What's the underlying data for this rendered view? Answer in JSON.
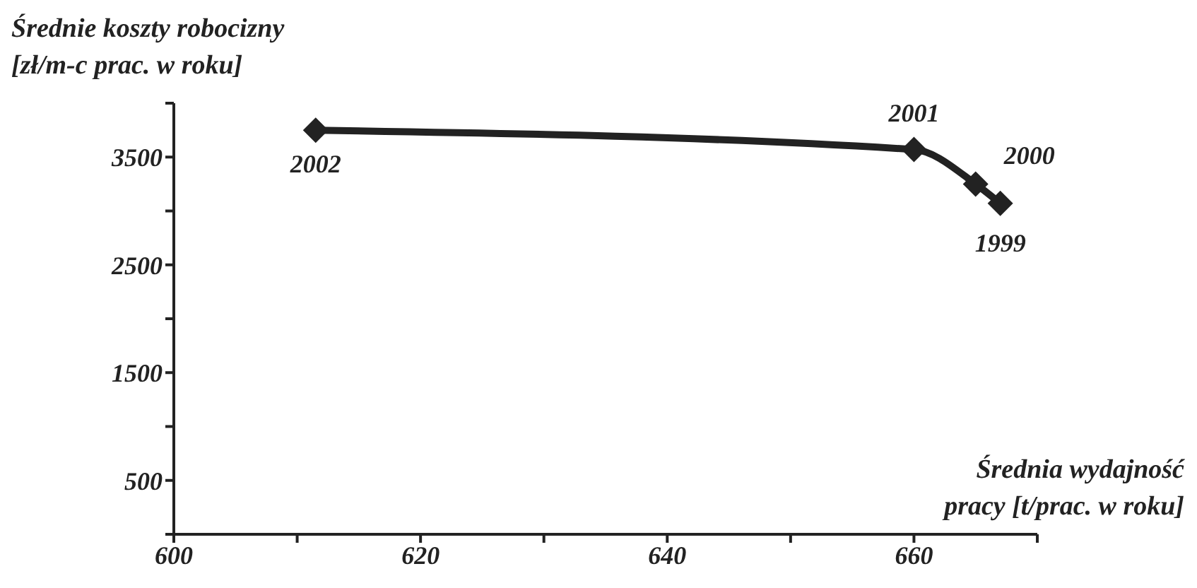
{
  "chart_data": {
    "type": "line",
    "ylabel": "Średnie koszty robocizny\n[zł/m-c prac. w roku]",
    "xlabel": "Średnia wydajność\npracy [t/prac. w roku]",
    "x": [
      611.5,
      660,
      665,
      667
    ],
    "series": [
      {
        "color": "#222222",
        "values": [
          3750,
          3570,
          3250,
          3070
        ]
      }
    ],
    "xlim": [
      600,
      670
    ],
    "xticks": [
      600,
      {
        "value": 610,
        "label": null
      },
      620,
      {
        "value": 630,
        "label": null
      },
      640,
      {
        "value": 650,
        "label": null
      },
      660,
      {
        "value": 670,
        "label": null
      }
    ],
    "ylim": [
      0,
      4000
    ],
    "yticks": [
      {
        "value": 0,
        "label": null
      },
      500,
      {
        "value": 1000,
        "label": null
      },
      1500,
      {
        "value": 2000,
        "label": null
      },
      2500,
      {
        "value": 3000,
        "label": null
      },
      3500,
      {
        "value": 4000,
        "label": null
      }
    ],
    "annotations": [
      {
        "text": "2002",
        "x": 611.5,
        "y": 3750
      },
      {
        "text": "2001",
        "x": 660,
        "y": 3570
      },
      {
        "text": "2000",
        "x": 665,
        "y": 3250
      },
      {
        "text": "1999",
        "x": 667,
        "y": 3070
      }
    ],
    "marker": "diamond",
    "line_style": "solid",
    "grid": false,
    "legend": false
  }
}
